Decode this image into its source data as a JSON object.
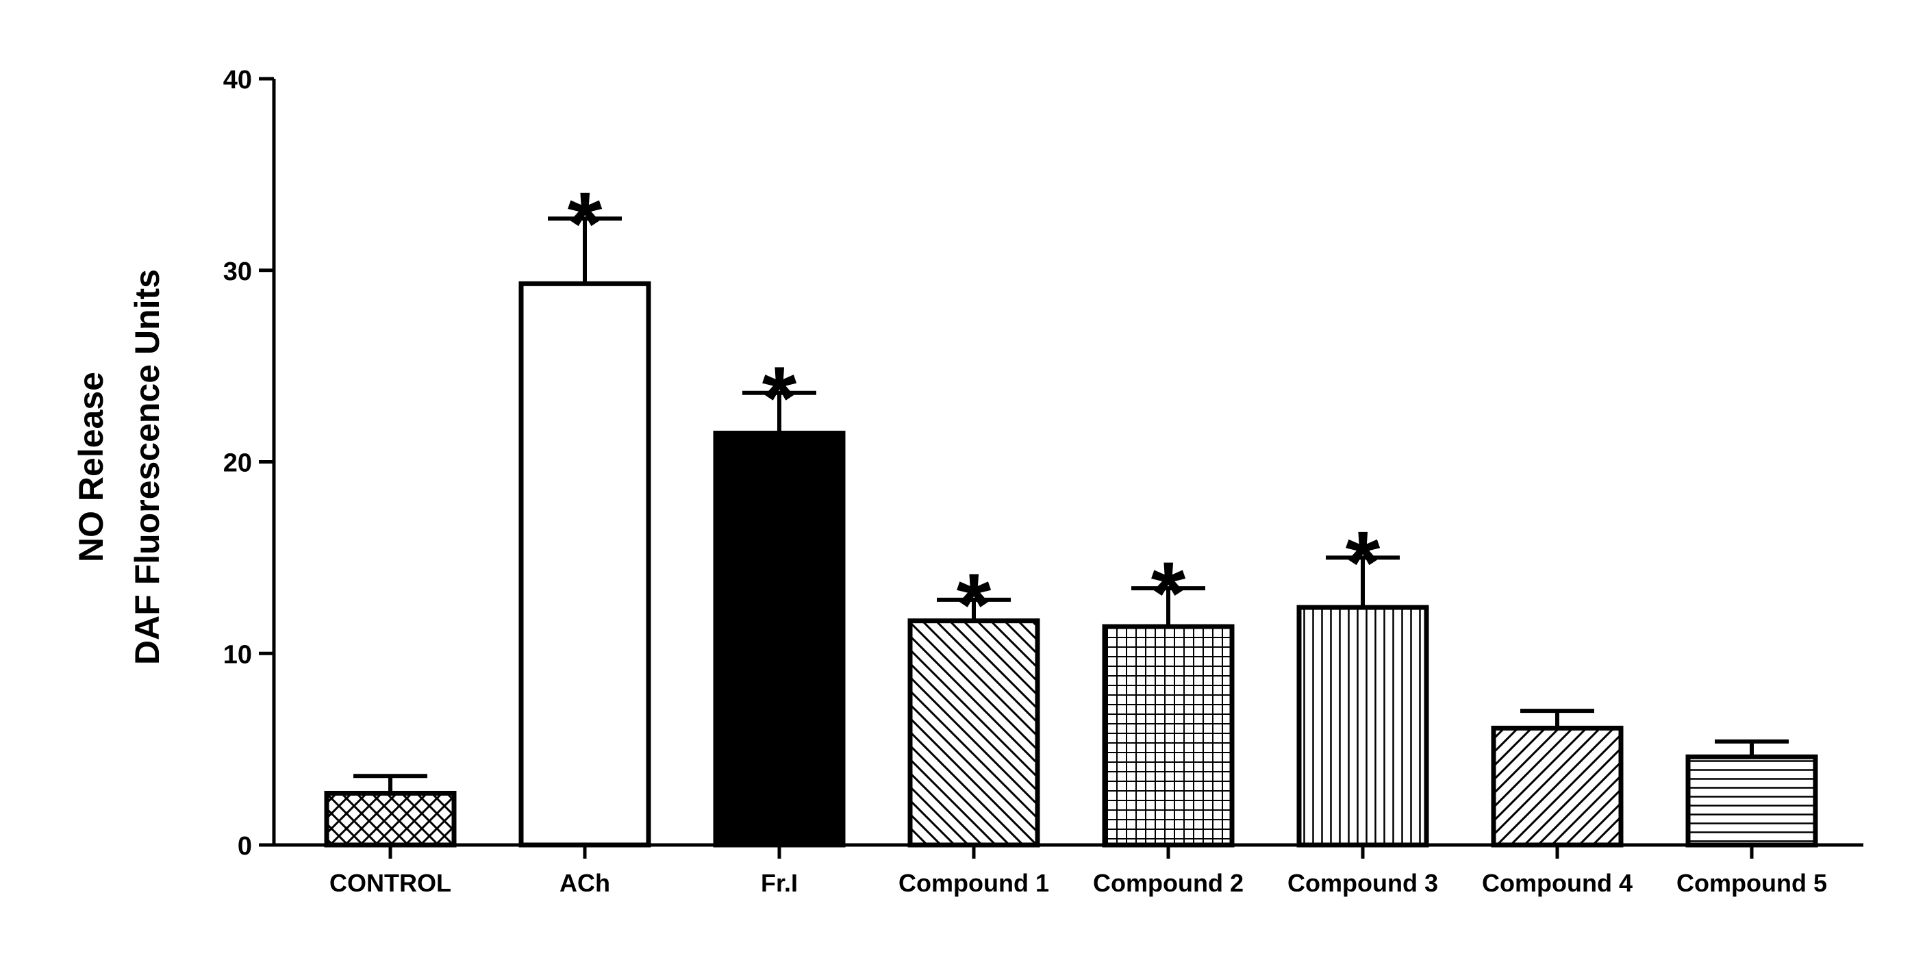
{
  "chart_data": {
    "type": "bar",
    "title": "",
    "ylabel_lines": [
      "NO Release",
      "DAF Fluorescence Units"
    ],
    "xlabel": "",
    "ylim": [
      0,
      40
    ],
    "yticks": [
      "0",
      "10",
      "20",
      "30",
      "40"
    ],
    "categories": [
      "CONTROL",
      "ACh",
      "Fr.I",
      "Compound 1",
      "Compound 2",
      "Compound 3",
      "Compound 4",
      "Compound 5"
    ],
    "values": [
      2.7,
      29.3,
      21.5,
      11.7,
      11.4,
      12.4,
      6.1,
      4.6
    ],
    "errors": [
      0.9,
      3.4,
      2.1,
      1.1,
      2.0,
      2.6,
      0.9,
      0.8
    ],
    "significance": [
      "",
      "*",
      "*",
      "*",
      "*",
      "*",
      "",
      ""
    ],
    "patterns": [
      "crosshatch-diagonal",
      "empty",
      "solid",
      "diagonal-down",
      "grid",
      "vertical",
      "diagonal-up",
      "horizontal"
    ],
    "bar_color": "#000000",
    "background": "#ffffff",
    "grid": false,
    "legend": "none"
  }
}
